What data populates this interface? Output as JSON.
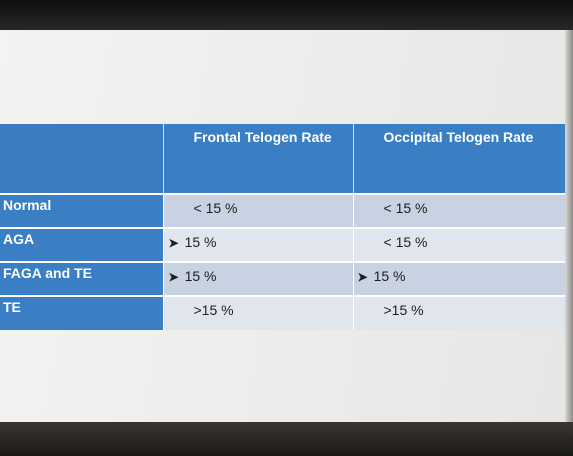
{
  "table": {
    "headers": [
      "",
      "Frontal Telogen Rate",
      "Occipital Telogen Rate"
    ],
    "rows": [
      {
        "label": "Normal",
        "frontal": "< 15 %",
        "occipital": "< 15 %"
      },
      {
        "label": "AGA",
        "frontal": "15 %",
        "occipital": "< 15 %"
      },
      {
        "label": "FAGA and TE",
        "frontal": "15 %",
        "occipital": "15 %"
      },
      {
        "label": "TE",
        "frontal": ">15 %",
        "occipital": ">15 %"
      }
    ],
    "arrow_glyph": "➤"
  },
  "colors": {
    "header_blue": "#3a7ec4",
    "row_dark": "#c8d2e2",
    "row_light": "#e1e6ee"
  }
}
